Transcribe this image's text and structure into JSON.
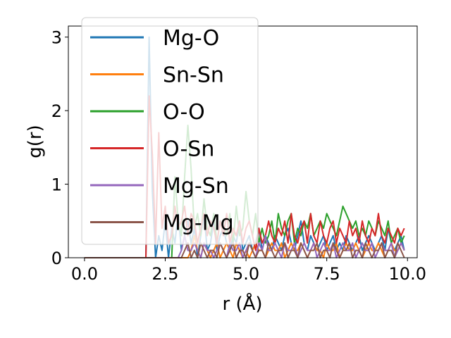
{
  "chart_data": {
    "type": "line",
    "title": "",
    "xlabel": "r (Å)",
    "ylabel": "g(r)",
    "xlim": [
      -0.5,
      10.3
    ],
    "ylim": [
      0,
      3.15
    ],
    "xticks": [
      0,
      2.5,
      5,
      7.5,
      10
    ],
    "xtick_labels": [
      "0.0",
      "2.5",
      "5.0",
      "7.5",
      "10.0"
    ],
    "yticks": [
      0,
      1,
      2,
      3
    ],
    "ytick_labels": [
      "0",
      "1",
      "2",
      "3"
    ],
    "grid": false,
    "legend": "upper-left",
    "x": [
      0,
      0.1,
      0.2,
      0.3,
      0.4,
      0.5,
      0.6,
      0.7,
      0.8,
      0.9,
      1.0,
      1.1,
      1.2,
      1.3,
      1.4,
      1.5,
      1.6,
      1.7,
      1.8,
      1.9,
      2.0,
      2.1,
      2.2,
      2.3,
      2.4,
      2.5,
      2.6,
      2.7,
      2.8,
      2.9,
      3.0,
      3.1,
      3.2,
      3.3,
      3.4,
      3.5,
      3.6,
      3.7,
      3.8,
      3.9,
      4.0,
      4.1,
      4.2,
      4.3,
      4.4,
      4.5,
      4.6,
      4.7,
      4.8,
      4.9,
      5.0,
      5.1,
      5.2,
      5.3,
      5.4,
      5.5,
      5.6,
      5.7,
      5.8,
      5.9,
      6.0,
      6.1,
      6.2,
      6.3,
      6.4,
      6.5,
      6.6,
      6.7,
      6.8,
      6.9,
      7.0,
      7.1,
      7.2,
      7.3,
      7.4,
      7.5,
      7.6,
      7.7,
      7.8,
      7.9,
      8.0,
      8.1,
      8.2,
      8.3,
      8.4,
      8.5,
      8.6,
      8.7,
      8.8,
      8.9,
      9.0,
      9.1,
      9.2,
      9.3,
      9.4,
      9.5,
      9.6,
      9.7,
      9.8,
      9.9
    ],
    "series": [
      {
        "name": "Mg-O",
        "color": "#1f77b4",
        "values": [
          0,
          0,
          0,
          0,
          0,
          0,
          0,
          0,
          0,
          0,
          0,
          0,
          0,
          0,
          0,
          0,
          0,
          0,
          0,
          0,
          3.0,
          0.9,
          0,
          0.3,
          0.1,
          0.5,
          0,
          0.4,
          0.2,
          0.6,
          0.1,
          0.3,
          0.5,
          0.2,
          0.4,
          0,
          0.3,
          0.6,
          0.1,
          0.2,
          0.5,
          0.1,
          0.3,
          0.4,
          0.2,
          0.1,
          0.3,
          0.2,
          0.5,
          0.1,
          0.2,
          0.3,
          0.1,
          0.2,
          0.4,
          0.1,
          0.3,
          0.2,
          0.1,
          0.3,
          0.2,
          0.1,
          0.3,
          0.4,
          0.2,
          0.1,
          0.3,
          0.5,
          0.2,
          0.1,
          0.3,
          0.2,
          0.1,
          0.2,
          0.3,
          0.1,
          0.2,
          0.3,
          0.1,
          0.2,
          0.1,
          0.3,
          0.2,
          0.1,
          0.2,
          0.3,
          0.1,
          0.2,
          0.3,
          0.2,
          0.1,
          0.2,
          0.3,
          0.1,
          0.4,
          0.2,
          0.1,
          0.2,
          0.3,
          0.1
        ]
      },
      {
        "name": "Sn-Sn",
        "color": "#ff7f0e",
        "values": [
          0,
          0,
          0,
          0,
          0,
          0,
          0,
          0,
          0,
          0,
          0,
          0,
          0,
          0,
          0,
          0,
          0,
          0,
          0,
          0,
          0,
          0,
          0,
          0,
          0,
          0,
          0,
          0,
          0,
          0,
          0,
          0,
          0,
          0.1,
          0.3,
          0.1,
          0,
          0.2,
          0.1,
          0,
          0.1,
          0.2,
          0,
          0.1,
          0.2,
          0.1,
          0,
          0.2,
          0.1,
          0,
          0.1,
          0,
          0.1,
          0.2,
          0.1,
          0.1,
          0,
          0.1,
          0.2,
          0.1,
          0.1,
          0.2,
          0,
          0.1,
          0.2,
          0.1,
          0.1,
          0.2,
          0.1,
          0,
          0.1,
          0.2,
          0.1,
          0.1,
          0,
          0.2,
          0.1,
          0.1,
          0.2,
          0,
          0.1,
          0.2,
          0.1,
          0.1,
          0.2,
          0.1,
          0,
          0.1,
          0.2,
          0.1,
          0.1,
          0.2,
          0.1,
          0,
          0.1,
          0.2,
          0.1,
          0.1,
          0.2,
          0.1
        ]
      },
      {
        "name": "O-O",
        "color": "#2ca02c",
        "values": [
          0,
          0,
          0,
          0,
          0,
          0,
          0,
          0,
          0,
          0,
          0,
          0,
          0,
          0,
          0,
          0,
          0,
          0,
          0,
          0,
          0,
          0,
          0,
          0,
          0,
          0,
          0,
          0,
          1.1,
          0.5,
          0.3,
          1.1,
          1.8,
          1.2,
          0.4,
          0.6,
          0.3,
          0.8,
          0.4,
          0.3,
          0.6,
          0.2,
          0.5,
          0.4,
          0.3,
          0.6,
          0.2,
          0.7,
          0.3,
          0.4,
          0.9,
          0.5,
          0.3,
          0.6,
          0.2,
          0.4,
          0.2,
          0.3,
          0.5,
          0.2,
          0.6,
          0.4,
          0.3,
          0.5,
          0.6,
          0.2,
          0.4,
          0.3,
          0.5,
          0.4,
          0.6,
          0.3,
          0.4,
          0.5,
          0.4,
          0.6,
          0.5,
          0.4,
          0.3,
          0.5,
          0.7,
          0.6,
          0.5,
          0.4,
          0.5,
          0.3,
          0.4,
          0.3,
          0.5,
          0.4,
          0.3,
          0.5,
          0.4,
          0.3,
          0.5,
          0.2,
          0.3,
          0.4,
          0.2,
          0.3
        ]
      },
      {
        "name": "O-Sn",
        "color": "#d62728",
        "values": [
          0,
          0,
          0,
          0,
          0,
          0,
          0,
          0,
          0,
          0,
          0,
          0,
          0,
          0,
          0,
          0,
          0,
          0,
          0,
          0,
          2.2,
          1.4,
          0.2,
          1.7,
          0.4,
          0.7,
          0.2,
          0.3,
          0.7,
          0.4,
          0.5,
          0.7,
          0.3,
          0.6,
          0.5,
          0.2,
          0.4,
          0.6,
          0.3,
          0.5,
          0.4,
          0.2,
          0.5,
          0.3,
          0.6,
          0.2,
          0.4,
          0.3,
          0.5,
          0.2,
          0.4,
          0.5,
          0.3,
          0.1,
          0.4,
          0.2,
          0.3,
          0.5,
          0.3,
          0.2,
          0.4,
          0.3,
          0.5,
          0.2,
          0.6,
          0.3,
          0.2,
          0.4,
          0.5,
          0.2,
          0.6,
          0.3,
          0.2,
          0.5,
          0.3,
          0.2,
          0.4,
          0.5,
          0.2,
          0.4,
          0.3,
          0.2,
          0.5,
          0.3,
          0.4,
          0.2,
          0.5,
          0.3,
          0.2,
          0.4,
          0.3,
          0.6,
          0.3,
          0.2,
          0.4,
          0.3,
          0.2,
          0.4,
          0.3,
          0.4
        ]
      },
      {
        "name": "Mg-Sn",
        "color": "#9467bd",
        "values": [
          0,
          0,
          0,
          0,
          0,
          0,
          0,
          0,
          0,
          0,
          0,
          0,
          0,
          0,
          0,
          0,
          0,
          0,
          0,
          0,
          0,
          0,
          0,
          0,
          0,
          0,
          0,
          0,
          0,
          0,
          0.1,
          0.3,
          0.1,
          0.1,
          0.2,
          0.1,
          0,
          0.2,
          0.1,
          0.1,
          0,
          0.1,
          0.2,
          0.1,
          0,
          0.2,
          0.1,
          0.1,
          0.2,
          0,
          0.1,
          0.2,
          0.1,
          0,
          0.2,
          0.1,
          0.3,
          0.1,
          0.1,
          0.2,
          0.1,
          0,
          0.2,
          0.1,
          0.1,
          0.2,
          0,
          0.1,
          0.2,
          0.1,
          0.1,
          0.2,
          0,
          0.1,
          0.2,
          0.1,
          0.1,
          0.2,
          0,
          0.1,
          0.2,
          0.1,
          0.1,
          0.2,
          0,
          0.1,
          0.2,
          0.1,
          0.1,
          0.2,
          0,
          0.1,
          0.2,
          0.1,
          0.1,
          0.2,
          0,
          0.1,
          0.2,
          0.1
        ]
      },
      {
        "name": "Mg-Mg",
        "color": "#8c564b",
        "values": [
          0,
          0,
          0,
          0,
          0,
          0,
          0,
          0,
          0,
          0,
          0,
          0,
          0,
          0,
          0,
          0,
          0,
          0,
          0,
          0,
          0,
          0,
          0,
          0,
          0,
          0,
          0,
          0,
          0,
          0,
          0,
          0.1,
          0.2,
          0,
          0.1,
          0,
          0.2,
          0.1,
          0,
          0.1,
          0.1,
          0,
          0.2,
          0.1,
          0,
          0.1,
          0.2,
          0,
          0.1,
          0.1,
          0,
          0.2,
          0.1,
          0,
          0.1,
          0.1,
          0,
          0.2,
          0.1,
          0,
          0.1,
          0.1,
          0.2,
          0,
          0.1,
          0.1,
          0,
          0.2,
          0.1,
          0,
          0.1,
          0.1,
          0.2,
          0,
          0.1,
          0.1,
          0,
          0.2,
          0.1,
          0,
          0.1,
          0.1,
          0.2,
          0,
          0.1,
          0.1,
          0,
          0.2,
          0.1,
          0,
          0.1,
          0.1,
          0.2,
          0,
          0.1,
          0.1,
          0,
          0.2,
          0.1,
          0
        ]
      }
    ]
  }
}
